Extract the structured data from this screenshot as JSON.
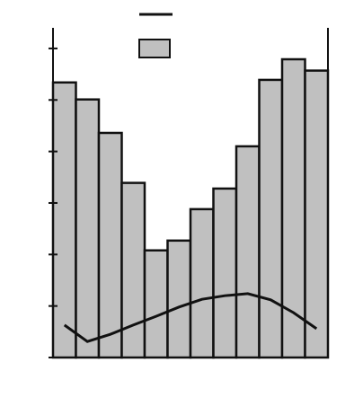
{
  "chart_data": {
    "type": "bar",
    "values": [
      5.34,
      5.01,
      4.36,
      3.39,
      2.08,
      2.27,
      2.88,
      3.28,
      4.1,
      5.39,
      5.79,
      5.57
    ],
    "color": "#c0c0c0",
    "line_values": [
      0.63,
      0.31,
      0.45,
      0.63,
      0.8,
      0.98,
      1.13,
      1.2,
      1.24,
      1.12,
      0.87,
      0.56
    ],
    "line_color": "#111111",
    "ylim": [
      0,
      6.4
    ],
    "yticks": [
      0,
      1,
      2,
      3,
      4,
      5,
      6
    ]
  }
}
